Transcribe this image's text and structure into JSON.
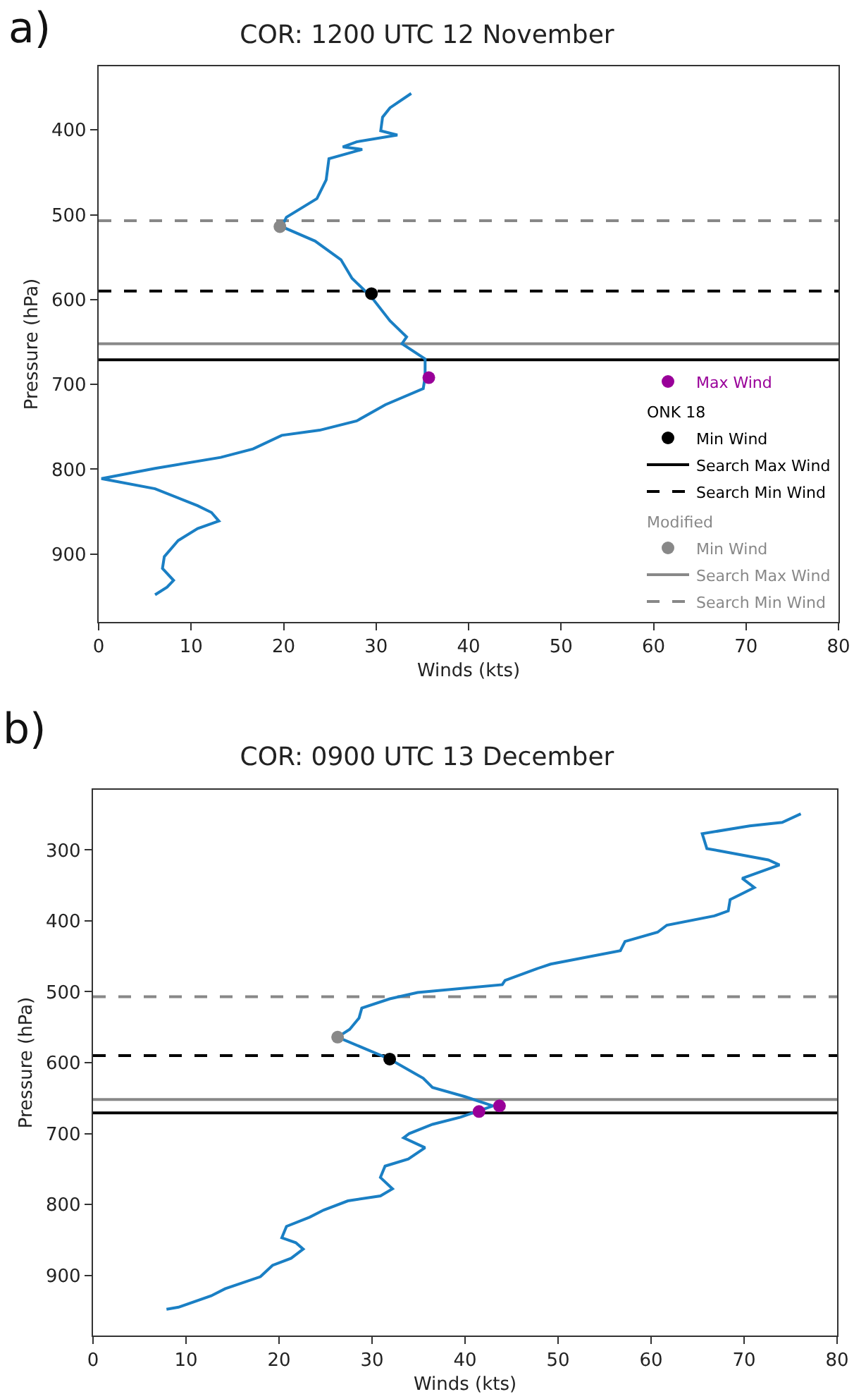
{
  "chart_data": [
    {
      "type": "line",
      "title": "COR: 1200 UTC 12 November",
      "xlabel": "Winds (kts)",
      "ylabel": "Pressure (hPa)",
      "annotations": [
        "a)",
        "ONK 18",
        "Modified"
      ],
      "xlim": [
        0,
        80
      ],
      "xticks": [
        0,
        10,
        20,
        30,
        40,
        50,
        60,
        70,
        80
      ],
      "ylim": [
        980,
        325
      ],
      "yticks": [
        400,
        500,
        600,
        700,
        800,
        900
      ],
      "grid": false,
      "legend": "bottom right",
      "line_style": "solid",
      "series": [
        {
          "color": "#1a7fc4",
          "x": [
            33.8,
            31.5,
            30.7,
            30.5,
            32.3,
            27.9,
            26.4,
            28.5,
            24.9,
            24.6,
            23.6,
            20.3,
            19.8,
            23.4,
            26.2,
            27.4,
            29.5,
            31.5,
            33.3,
            32.8,
            35.3,
            35.3,
            35.1,
            31.0,
            27.9,
            23.9,
            19.8,
            16.7,
            13.2,
            6.1,
            0.3,
            6.1,
            10.7,
            12.2,
            13.0,
            10.7,
            8.6,
            7.1,
            6.9,
            8.1,
            7.4,
            6.1
          ],
          "values": [
            357,
            374,
            385,
            401,
            406,
            414,
            420,
            423,
            434,
            459,
            481,
            503,
            514,
            531,
            553,
            575,
            597,
            625,
            644,
            652,
            670,
            691,
            705,
            724,
            743,
            754,
            760,
            776,
            786,
            799,
            811,
            823,
            843,
            851,
            861,
            870,
            884,
            903,
            917,
            931,
            939,
            948
          ]
        },
        {
          "type": "scatter",
          "marker": "circle",
          "name": "Max Wind",
          "color": "#990099",
          "x": [
            35.7
          ],
          "values": [
            692
          ]
        },
        {
          "type": "scatter",
          "marker": "circle",
          "name": "Min Wind",
          "color": "#000000",
          "x": [
            29.5
          ],
          "values": [
            593
          ]
        },
        {
          "type": "scatter",
          "marker": "circle",
          "name": "Min Wind",
          "color": "#888888",
          "x": [
            19.6
          ],
          "values": [
            514
          ]
        }
      ],
      "ref_lines": [
        {
          "axis": "y",
          "value": 671,
          "label": "Search Max Wind",
          "color": "#000000",
          "line_style": "solid"
        },
        {
          "axis": "y",
          "value": 590,
          "label": "Search Min Wind",
          "color": "#000000",
          "line_style": "dashed"
        },
        {
          "axis": "y",
          "value": 652,
          "label": "Search Max Wind",
          "color": "#888888",
          "line_style": "solid"
        },
        {
          "axis": "y",
          "value": 507,
          "label": "Search Min Wind",
          "color": "#888888",
          "line_style": "dashed"
        }
      ]
    },
    {
      "type": "line",
      "title": "COR: 0900 UTC 13 December",
      "xlabel": "Winds (kts)",
      "ylabel": "Pressure (hPa)",
      "annotations": [
        "b)"
      ],
      "xlim": [
        0,
        80
      ],
      "xticks": [
        0,
        10,
        20,
        30,
        40,
        50,
        60,
        70,
        80
      ],
      "ylim": [
        985,
        215
      ],
      "yticks": [
        300,
        400,
        500,
        600,
        700,
        800,
        900
      ],
      "grid": false,
      "legend": false,
      "line_style": "solid",
      "series": [
        {
          "color": "#1a7fc4",
          "x": [
            76.1,
            74.1,
            70.6,
            65.5,
            66.0,
            67.3,
            72.6,
            73.8,
            69.8,
            71.1,
            68.5,
            68.3,
            66.8,
            61.7,
            60.7,
            57.2,
            56.7,
            49.2,
            47.6,
            44.3,
            44.0,
            34.9,
            31.9,
            28.9,
            28.6,
            27.6,
            26.3,
            31.9,
            35.5,
            36.5,
            40.0,
            43.0,
            39.5,
            36.5,
            34.0,
            33.4,
            35.7,
            33.9,
            31.4,
            30.9,
            32.2,
            30.9,
            27.4,
            24.8,
            23.3,
            20.8,
            20.3,
            21.8,
            22.6,
            21.3,
            19.3,
            18.0,
            14.2,
            12.7,
            9.2,
            7.9
          ],
          "values": [
            249,
            261,
            266,
            277,
            298,
            301,
            314,
            321,
            340,
            353,
            370,
            386,
            393,
            406,
            416,
            429,
            442,
            461,
            468,
            484,
            490,
            501,
            510,
            523,
            537,
            553,
            564,
            595,
            622,
            635,
            648,
            661,
            677,
            687,
            700,
            706,
            720,
            736,
            746,
            762,
            778,
            788,
            795,
            808,
            818,
            831,
            847,
            854,
            863,
            876,
            886,
            902,
            919,
            929,
            945,
            948
          ]
        },
        {
          "type": "scatter",
          "marker": "circle",
          "color": "#990099",
          "x": [
            41.5,
            43.7
          ],
          "values": [
            669,
            661
          ]
        },
        {
          "type": "scatter",
          "marker": "circle",
          "color": "#000000",
          "x": [
            31.9
          ],
          "values": [
            595
          ]
        },
        {
          "type": "scatter",
          "marker": "circle",
          "color": "#888888",
          "x": [
            26.3
          ],
          "values": [
            564
          ]
        }
      ],
      "ref_lines": [
        {
          "axis": "y",
          "value": 671,
          "color": "#000000",
          "line_style": "solid"
        },
        {
          "axis": "y",
          "value": 590,
          "color": "#000000",
          "line_style": "dashed"
        },
        {
          "axis": "y",
          "value": 652,
          "color": "#888888",
          "line_style": "solid"
        },
        {
          "axis": "y",
          "value": 507,
          "color": "#888888",
          "line_style": "dashed"
        }
      ]
    }
  ]
}
